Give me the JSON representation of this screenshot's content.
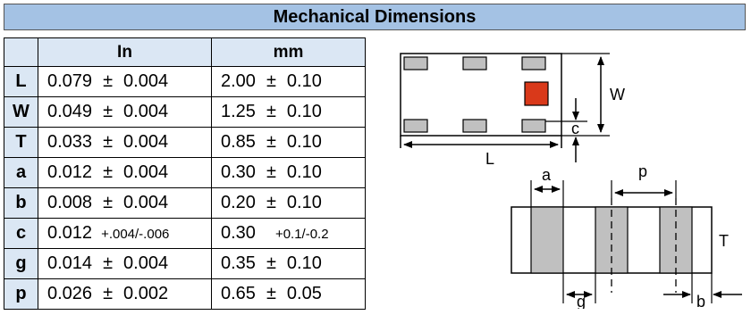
{
  "title": "Mechanical Dimensions",
  "units": {
    "in": "In",
    "mm": "mm"
  },
  "rows": [
    {
      "label": "L",
      "in": {
        "value": "0.079",
        "pm": "±",
        "tol": "0.004"
      },
      "mm": {
        "value": "2.00",
        "pm": "±",
        "tol": "0.10"
      }
    },
    {
      "label": "W",
      "in": {
        "value": "0.049",
        "pm": "±",
        "tol": "0.004"
      },
      "mm": {
        "value": "1.25",
        "pm": "±",
        "tol": "0.10"
      }
    },
    {
      "label": "T",
      "in": {
        "value": "0.033",
        "pm": "±",
        "tol": "0.004"
      },
      "mm": {
        "value": "0.85",
        "pm": "±",
        "tol": "0.10"
      }
    },
    {
      "label": "a",
      "in": {
        "value": "0.012",
        "pm": "±",
        "tol": "0.004"
      },
      "mm": {
        "value": "0.30",
        "pm": "±",
        "tol": "0.10"
      }
    },
    {
      "label": "b",
      "in": {
        "value": "0.008",
        "pm": "±",
        "tol": "0.004"
      },
      "mm": {
        "value": "0.20",
        "pm": "±",
        "tol": "0.10"
      }
    },
    {
      "label": "c",
      "in": {
        "value": "0.012",
        "tol_text": "+.004/-.006"
      },
      "mm": {
        "value": "0.30",
        "tol_text": "+0.1/-0.2"
      }
    },
    {
      "label": "g",
      "in": {
        "value": "0.014",
        "pm": "±",
        "tol": "0.004"
      },
      "mm": {
        "value": "0.35",
        "pm": "±",
        "tol": "0.10"
      }
    },
    {
      "label": "p",
      "in": {
        "value": "0.026",
        "pm": "±",
        "tol": "0.002"
      },
      "mm": {
        "value": "0.65",
        "pm": "±",
        "tol": "0.05"
      }
    }
  ],
  "diagram": {
    "labels": {
      "W": "W",
      "c": "c",
      "L": "L",
      "a": "a",
      "p": "p",
      "T": "T",
      "g": "g",
      "b": "b"
    },
    "colors": {
      "pad_fill": "#c0c0c0",
      "marker_fill": "#d9391a",
      "line": "#000000"
    }
  }
}
